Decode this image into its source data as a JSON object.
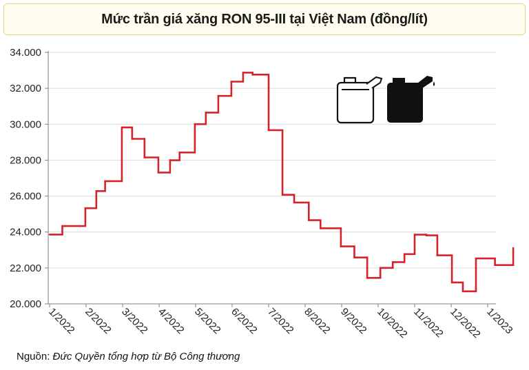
{
  "title": "Mức trần giá xăng RON 95-III tại Việt Nam (đồng/lít)",
  "source": {
    "label": "Nguồn:",
    "text": "Đức Quyền tổng hợp từ Bộ Công thương"
  },
  "icons": [
    "fuel-can-outline-icon",
    "fuel-can-filled-icon"
  ],
  "colors": {
    "line": "#d4232b",
    "grid": "#d9d9d9",
    "axis": "#7f7f7f",
    "title_border": "#e6d48a"
  },
  "chart_data": {
    "type": "line",
    "title": "Mức trần giá xăng RON 95-III tại Việt Nam (đồng/lít)",
    "xlabel": "",
    "ylabel": "",
    "ylim": [
      20000,
      34000
    ],
    "y_ticks": [
      "20.000",
      "22.000",
      "24.000",
      "26.000",
      "28.000",
      "30.000",
      "32.000",
      "34.000"
    ],
    "x_ticks": [
      "1/2022",
      "2/2022",
      "3/2022",
      "4/2022",
      "5/2022",
      "6/2022",
      "7/2022",
      "8/2022",
      "9/2022",
      "10/2022",
      "11/2022",
      "12/2022",
      "1/2023"
    ],
    "x_range": [
      0,
      12.7
    ],
    "step": true,
    "grid": "horizontal",
    "legend": "none",
    "x": [
      0,
      0.35,
      0.98,
      1.28,
      1.52,
      1.98,
      2.26,
      2.6,
      2.98,
      3.3,
      3.56,
      3.98,
      4.28,
      4.62,
      4.98,
      5.3,
      5.56,
      6.0,
      6.38,
      6.7,
      7.1,
      7.42,
      7.98,
      8.35,
      8.7,
      9.06,
      9.4,
      9.72,
      10.0,
      10.32,
      10.62,
      11.02,
      11.32,
      11.68,
      12.2,
      12.7
    ],
    "values": [
      23858,
      24332,
      25322,
      26280,
      26830,
      29824,
      29187,
      28149,
      27311,
      27995,
      28425,
      30005,
      30649,
      31575,
      32370,
      32873,
      32762,
      29670,
      26070,
      25644,
      24657,
      24207,
      23200,
      22580,
      21445,
      22003,
      22325,
      22770,
      23852,
      23811,
      22700,
      21192,
      20698,
      22526,
      22160,
      23110
    ]
  }
}
